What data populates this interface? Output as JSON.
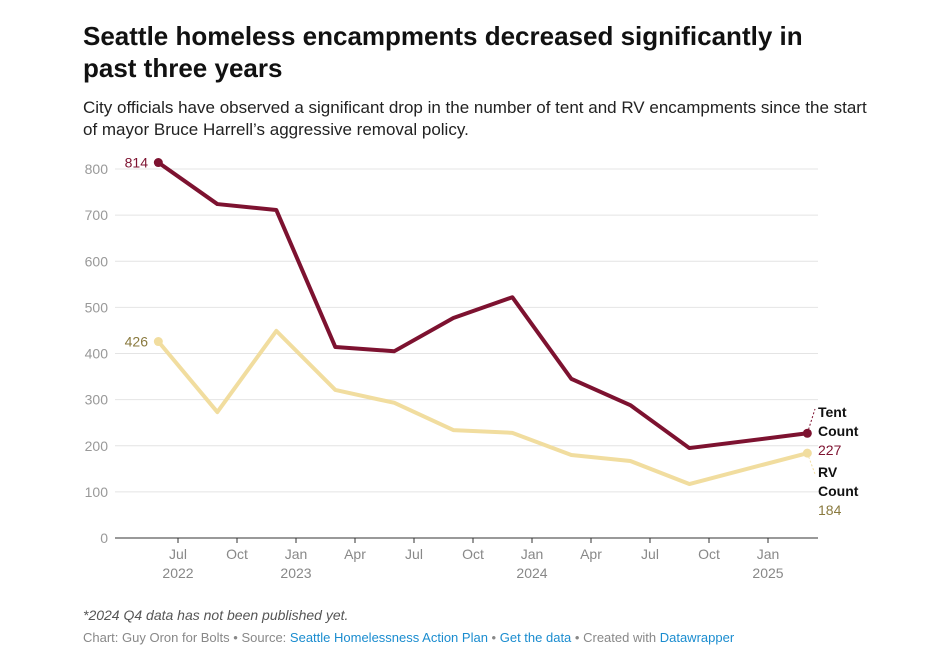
{
  "title": "Seattle homeless encampments decreased significantly in past three years",
  "subtitle": "City officials have observed a significant drop in the number of tent and RV encampments since the start of mayor Bruce Harrell’s aggressive removal policy.",
  "note": "*2024 Q4 data has not been published yet.",
  "footer": {
    "credit": "Chart: Guy Oron for Bolts",
    "source_prefix": "Source:",
    "source_link": "Seattle Homelessness Action Plan",
    "get_data": "Get the data",
    "created_prefix": "Created with",
    "created_link": "Datawrapper",
    "separator": "•"
  },
  "chart_data": {
    "type": "line",
    "title": "Seattle homeless encampments decreased significantly in past three years",
    "xlabel": "",
    "ylabel": "",
    "ylim": [
      0,
      800
    ],
    "yticks": [
      0,
      100,
      200,
      300,
      400,
      500,
      600,
      700,
      800
    ],
    "xticks": [
      {
        "date": "2022-07",
        "label": "Jul",
        "year": "2022"
      },
      {
        "date": "2022-10",
        "label": "Oct",
        "year": ""
      },
      {
        "date": "2023-01",
        "label": "Jan",
        "year": "2023"
      },
      {
        "date": "2023-04",
        "label": "Apr",
        "year": ""
      },
      {
        "date": "2023-07",
        "label": "Jul",
        "year": ""
      },
      {
        "date": "2023-10",
        "label": "Oct",
        "year": ""
      },
      {
        "date": "2024-01",
        "label": "Jan",
        "year": "2024"
      },
      {
        "date": "2024-04",
        "label": "Apr",
        "year": ""
      },
      {
        "date": "2024-07",
        "label": "Jul",
        "year": ""
      },
      {
        "date": "2024-10",
        "label": "Oct",
        "year": ""
      },
      {
        "date": "2025-01",
        "label": "Jan",
        "year": "2025"
      }
    ],
    "grid": true,
    "x": [
      "2022-06",
      "2022-09",
      "2022-12",
      "2023-03",
      "2023-06",
      "2023-09",
      "2023-12",
      "2024-03",
      "2024-06",
      "2024-09",
      "2025-03"
    ],
    "series": [
      {
        "name": "Tent Count",
        "color": "#7d1230",
        "label_color": "#7d1230",
        "values": [
          814,
          724,
          711,
          414,
          405,
          477,
          522,
          345,
          288,
          195,
          227
        ],
        "start_label": "814",
        "end_label": "227"
      },
      {
        "name": "RV Count",
        "color": "#f1dd9f",
        "label_color": "#8a7a3f",
        "values": [
          426,
          273,
          449,
          321,
          293,
          234,
          228,
          180,
          167,
          117,
          184
        ],
        "start_label": "426",
        "end_label": "184"
      }
    ]
  }
}
